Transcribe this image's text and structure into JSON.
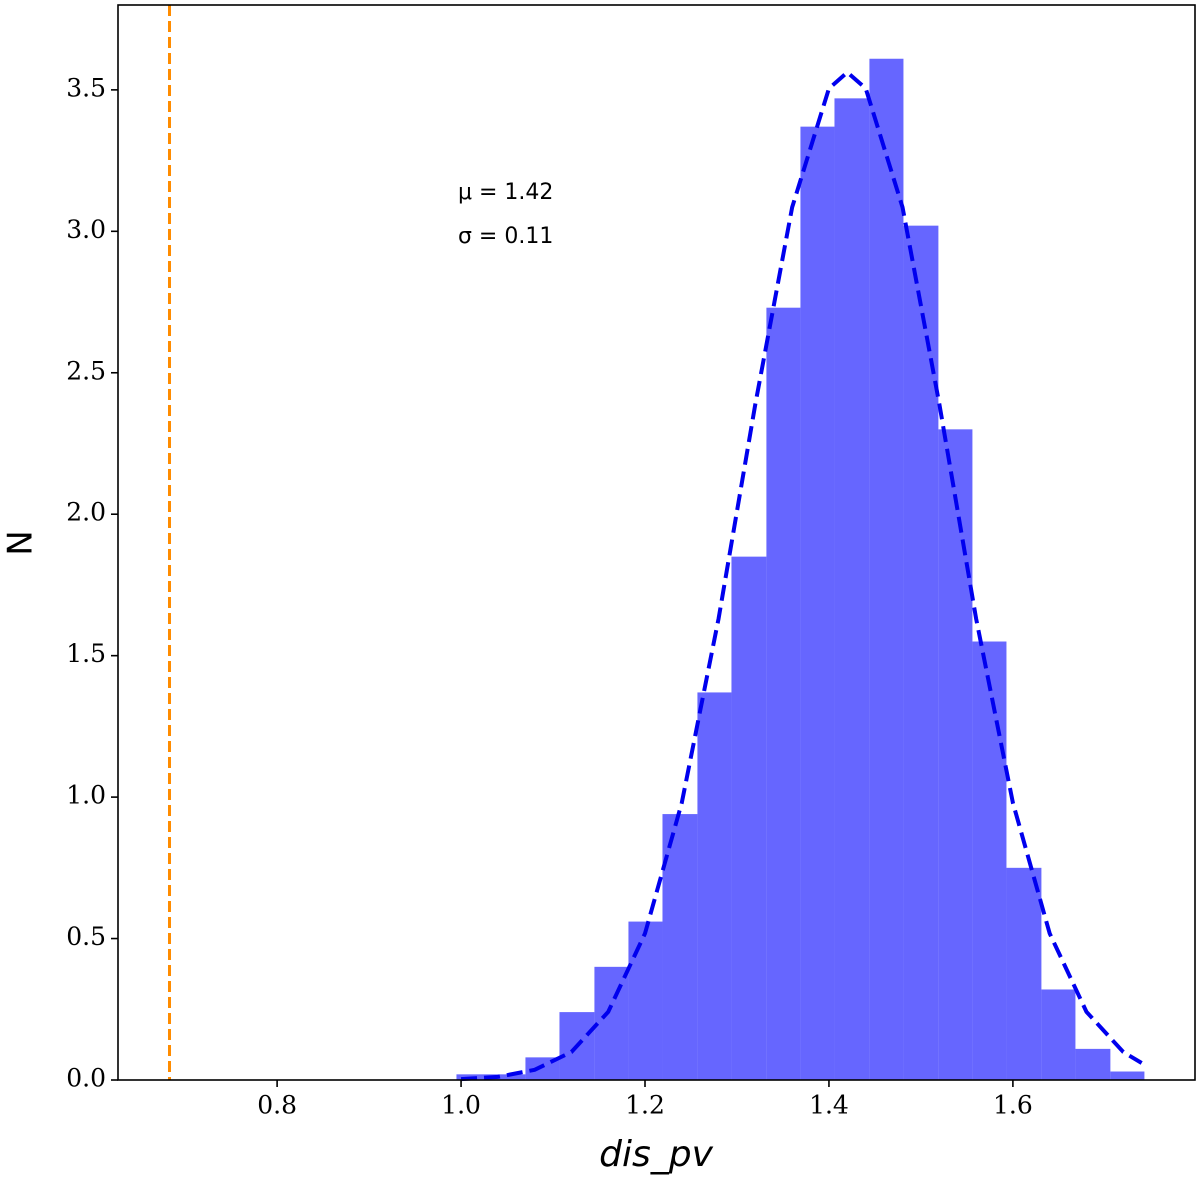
{
  "chart_data": {
    "type": "histogram",
    "xlabel": "dis_pv",
    "ylabel": "N",
    "bins": [
      0.995,
      1.032,
      1.07,
      1.107,
      1.145,
      1.182,
      1.219,
      1.257,
      1.294,
      1.332,
      1.369,
      1.406,
      1.444,
      1.481,
      1.519,
      1.556,
      1.593,
      1.631,
      1.668,
      1.706,
      1.743
    ],
    "counts": [
      0.02,
      0.02,
      0.08,
      0.24,
      0.4,
      0.56,
      0.94,
      1.37,
      1.85,
      2.73,
      3.37,
      3.47,
      3.61,
      3.02,
      2.3,
      1.55,
      0.75,
      0.32,
      0.11,
      0.03
    ],
    "color": "#6666ff",
    "fit": {
      "color": "#0000ee",
      "x": [
        1.0,
        1.04,
        1.08,
        1.12,
        1.16,
        1.2,
        1.24,
        1.28,
        1.32,
        1.36,
        1.4,
        1.42,
        1.44,
        1.48,
        1.52,
        1.56,
        1.6,
        1.64,
        1.68,
        1.72,
        1.74
      ],
      "values": [
        0.003,
        0.011,
        0.036,
        0.099,
        0.241,
        0.518,
        0.98,
        1.631,
        2.39,
        3.085,
        3.505,
        3.562,
        3.505,
        3.085,
        2.39,
        1.631,
        0.98,
        0.518,
        0.241,
        0.099,
        0.06
      ]
    },
    "vline": {
      "x": 0.683,
      "color": "#ff8c00"
    },
    "annotations": [
      "μ = 1.42",
      "σ = 0.11"
    ],
    "xlim": [
      0.627,
      1.798
    ],
    "ylim": [
      0,
      3.8
    ],
    "xticks": [
      0.8,
      {
        "value": 1.0,
        "label": "1.0"
      },
      1.2,
      1.4,
      1.6
    ],
    "yticks": [
      {
        "value": 0,
        "label": "0.0"
      },
      0.5,
      {
        "value": 1,
        "label": "1.0"
      },
      1.5,
      {
        "value": 2,
        "label": "2.0"
      },
      2.5,
      {
        "value": 3,
        "label": "3.0"
      },
      3.5
    ]
  }
}
